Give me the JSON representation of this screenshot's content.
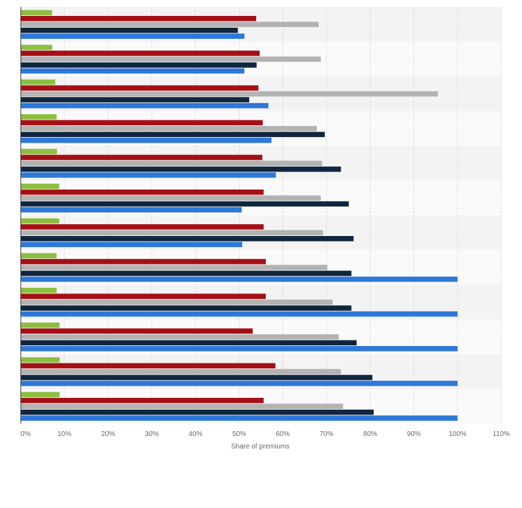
{
  "chart_data": {
    "type": "bar",
    "orientation": "horizontal",
    "title": "",
    "xlabel": "Share of premiums",
    "ylabel": "",
    "xlim": [
      0,
      110
    ],
    "x_ticks": [
      0,
      10,
      20,
      30,
      40,
      50,
      60,
      70,
      80,
      90,
      100,
      110
    ],
    "x_tick_labels": [
      "0%",
      "10%",
      "20%",
      "30%",
      "40%",
      "50%",
      "60%",
      "70%",
      "80%",
      "90%",
      "100%",
      "110%"
    ],
    "grid": true,
    "legend": "none",
    "group_count": 12,
    "series": [
      {
        "color": "#8cbf3f",
        "values": [
          7.2,
          7.2,
          7.9,
          8.2,
          8.3,
          8.8,
          8.8,
          8.2,
          8.2,
          8.9,
          8.9,
          8.9
        ]
      },
      {
        "color": "#a50f15",
        "values": [
          53.9,
          54.7,
          54.4,
          55.4,
          55.3,
          55.6,
          55.6,
          56.1,
          56.1,
          53.1,
          58.3,
          55.6
        ]
      },
      {
        "color": "#b3b3b3",
        "values": [
          68.2,
          68.7,
          95.5,
          67.8,
          69.0,
          68.7,
          69.2,
          70.2,
          71.4,
          72.8,
          73.3,
          73.8
        ]
      },
      {
        "color": "#10263e",
        "values": [
          49.7,
          54.0,
          52.3,
          69.6,
          73.3,
          75.1,
          76.2,
          75.7,
          75.7,
          76.9,
          80.5,
          80.8
        ]
      },
      {
        "color": "#2d78d8",
        "values": [
          51.2,
          51.2,
          56.7,
          57.4,
          58.4,
          50.6,
          50.7,
          100,
          100,
          100,
          100,
          100
        ]
      }
    ]
  }
}
